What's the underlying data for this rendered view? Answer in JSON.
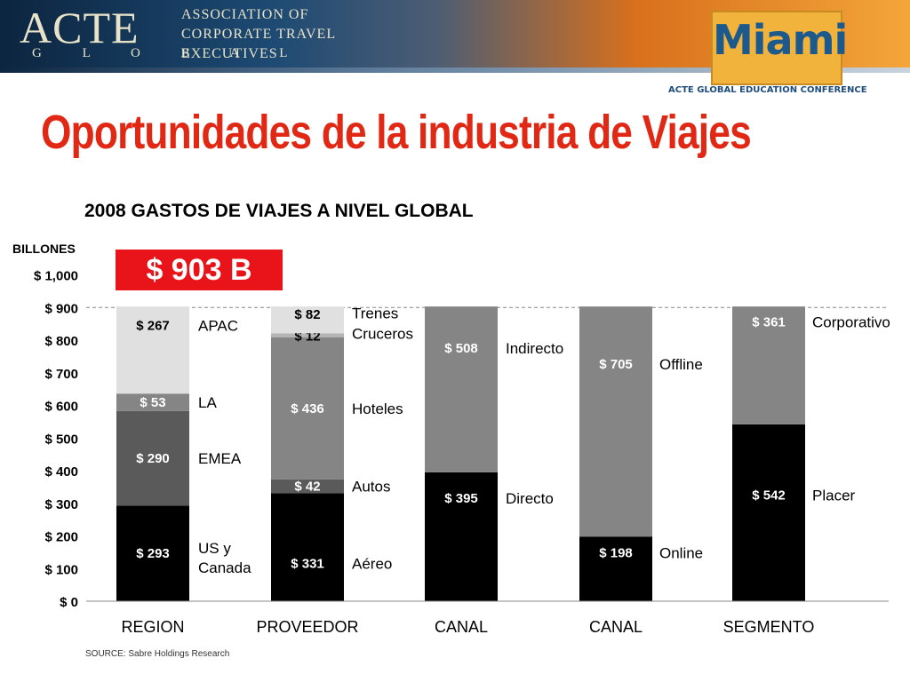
{
  "header": {
    "logo_text": "ACTE",
    "logo_sub": "G L O B A L",
    "org_lines": [
      "ASSOCIATION OF",
      "CORPORATE TRAVEL",
      "EXECUTIVES"
    ],
    "city_logo": "Miami",
    "conference": "ACTE GLOBAL EDUCATION CONFERENCE"
  },
  "title": "Oportunidades de la industria de Viajes",
  "total_label": "$ 903 B",
  "source": "SOURCE:  Sabre Holdings Research",
  "colors": {
    "title": "#e02814",
    "total_box": "#e8141a",
    "black": "#000000",
    "dark_gray": "#5a5a5a",
    "mid_gray": "#858585",
    "light_gray": "#e0e0e0"
  },
  "chart_data": {
    "type": "bar",
    "stacked": true,
    "title": "2008 GASTOS DE VIAJES A NIVEL GLOBAL",
    "ylabel": "BILLONES",
    "ylim": [
      0,
      1000
    ],
    "yticks": [
      "$ 0",
      "$ 100",
      "$ 200",
      "$ 300",
      "$ 400",
      "$ 500",
      "$ 600",
      "$ 700",
      "$ 800",
      "$ 900",
      "$ 1,000"
    ],
    "grid": "dashed line at $ 900",
    "categories": [
      "REGION",
      "PROVEEDOR",
      "CANAL",
      "CANAL",
      "SEGMENTO"
    ],
    "bars": [
      {
        "category": "REGION",
        "segments": [
          {
            "name": "US y\nCanada",
            "value": 293,
            "label": "$ 293",
            "color": "#000000"
          },
          {
            "name": "EMEA",
            "value": 290,
            "label": "$ 290",
            "color": "#5a5a5a"
          },
          {
            "name": "LA",
            "value": 53,
            "label": "$ 53",
            "color": "#858585"
          },
          {
            "name": "APAC",
            "value": 267,
            "label": "$ 267",
            "color": "#e0e0e0"
          }
        ]
      },
      {
        "category": "PROVEEDOR",
        "segments": [
          {
            "name": "Aéreo",
            "value": 331,
            "label": "$ 331",
            "color": "#000000"
          },
          {
            "name": "Autos",
            "value": 42,
            "label": "$ 42",
            "color": "#5a5a5a"
          },
          {
            "name": "Hoteles",
            "value": 436,
            "label": "$ 436",
            "color": "#858585"
          },
          {
            "name": "Cruceros",
            "value": 12,
            "label": "$ 12",
            "color": "#b5b5b5"
          },
          {
            "name": "Trenes",
            "value": 82,
            "label": "$ 82",
            "color": "#e0e0e0"
          }
        ]
      },
      {
        "category": "CANAL",
        "segments": [
          {
            "name": "Directo",
            "value": 395,
            "label": "$ 395",
            "color": "#000000"
          },
          {
            "name": "Indirecto",
            "value": 508,
            "label": "$ 508",
            "color": "#858585"
          }
        ]
      },
      {
        "category": "CANAL",
        "segments": [
          {
            "name": "Online",
            "value": 198,
            "label": "$ 198",
            "color": "#000000"
          },
          {
            "name": "Offline",
            "value": 705,
            "label": "$ 705",
            "color": "#858585"
          }
        ]
      },
      {
        "category": "SEGMENTO",
        "segments": [
          {
            "name": "Placer",
            "value": 542,
            "label": "$ 542",
            "color": "#000000"
          },
          {
            "name": "Corporativo",
            "value": 361,
            "label": "$ 361",
            "color": "#858585"
          }
        ]
      }
    ]
  }
}
